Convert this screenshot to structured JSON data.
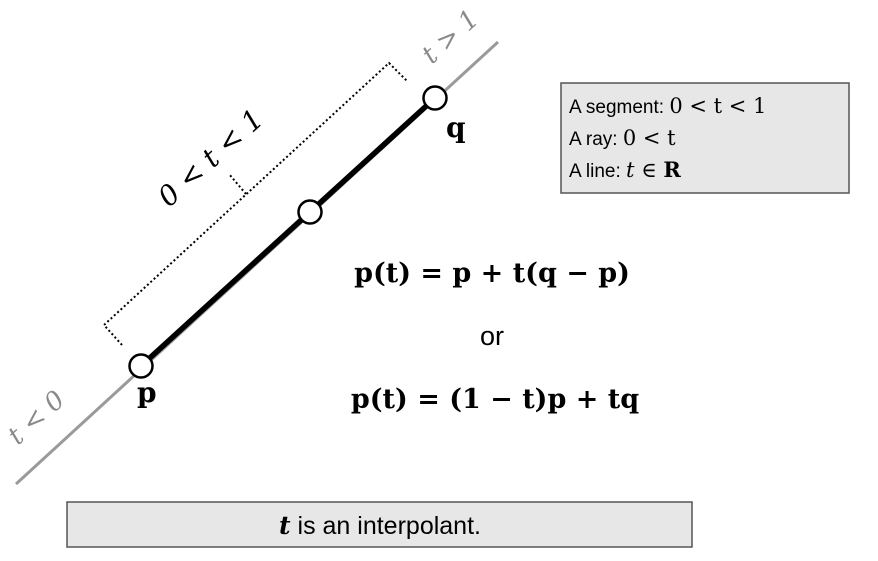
{
  "colors": {
    "guide_line": "#9a9a9a",
    "segment": "#000000",
    "box_fill": "#e7e7e7",
    "box_stroke": "#555555",
    "region_label": "#8a8a8a"
  },
  "points": {
    "p_label": "p",
    "q_label": "q"
  },
  "region_labels": {
    "before": "t < 0",
    "after": "t > 1",
    "segment": "0 < t < 1"
  },
  "info_box": {
    "line1_text": "A segment: ",
    "line1_math": "0 < t < 1",
    "line2_text": "A ray:  ",
    "line2_math": "0 < t",
    "line3_text": "A line: ",
    "line3_math_t": "t",
    "line3_math_in": " ∈ ",
    "line3_math_R": "R"
  },
  "equations": {
    "eq1": "p(t) = p + t(q − p)",
    "or": "or",
    "eq2": "p(t) = (1 − t)p + tq"
  },
  "caption": {
    "t": "t",
    "text": " is an interpolant."
  }
}
